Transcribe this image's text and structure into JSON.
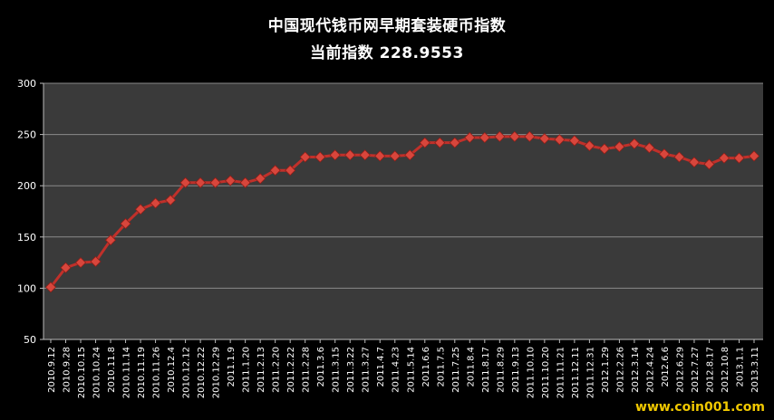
{
  "header": {
    "title": "中国现代钱币网早期套装硬币指数",
    "subtitle": "当前指数 228.9553"
  },
  "watermark": "www.coin001.com",
  "colors": {
    "background": "#000000",
    "plot_area": "#3a3a3a",
    "grid": "#8a8a8a",
    "line": "#c0302a",
    "marker": "#d8463c"
  },
  "chart_data": {
    "type": "line",
    "title": "中国现代钱币网早期套装硬币指数",
    "subtitle": "当前指数 228.9553",
    "xlabel": "",
    "ylabel": "",
    "ylim": [
      50,
      300
    ],
    "yticks": [
      50,
      100,
      150,
      200,
      250,
      300
    ],
    "grid": true,
    "legend": "none",
    "categories": [
      "2010.9.12",
      "2010.9.28",
      "2010.10.15",
      "2010.10.24",
      "2010.11.8",
      "2010.11.14",
      "2010.11.19",
      "2010.11.26",
      "2010.12.4",
      "2010.12.12",
      "2010.12.22",
      "2010.12.29",
      "2011.1.9",
      "2011.1.20",
      "2011.2.13",
      "2011.2.20",
      "2011.2.22",
      "2011.2.28",
      "2011.3.6",
      "2011.3.15",
      "2011.3.22",
      "2011.3.27",
      "2011.4.7",
      "2011.4.23",
      "2011.5.14",
      "2011.6.6",
      "2011.7.5",
      "2011.7.25",
      "2011.8.4",
      "2011.8.17",
      "2011.8.29",
      "2011.9.13",
      "2011.10.10",
      "2011.10.20",
      "2011.11.21",
      "2011.12.11",
      "2011.12.31",
      "2012.1.29",
      "2012.2.26",
      "2012.3.14",
      "2012.4.24",
      "2012.6.6",
      "2012.6.29",
      "2012.7.27",
      "2012.8.17",
      "2012.10.8",
      "2013.1.1",
      "2013.3.11"
    ],
    "values": [
      101,
      120,
      125,
      126,
      147,
      163,
      177,
      183,
      186,
      203,
      203,
      203,
      205,
      203,
      207,
      215,
      215,
      228,
      228,
      230,
      230,
      230,
      229,
      229,
      230,
      242,
      242,
      242,
      247,
      247,
      248,
      248,
      248,
      246,
      245,
      244,
      239,
      236,
      238,
      241,
      237,
      231,
      228,
      223,
      221,
      227,
      227,
      229
    ]
  }
}
